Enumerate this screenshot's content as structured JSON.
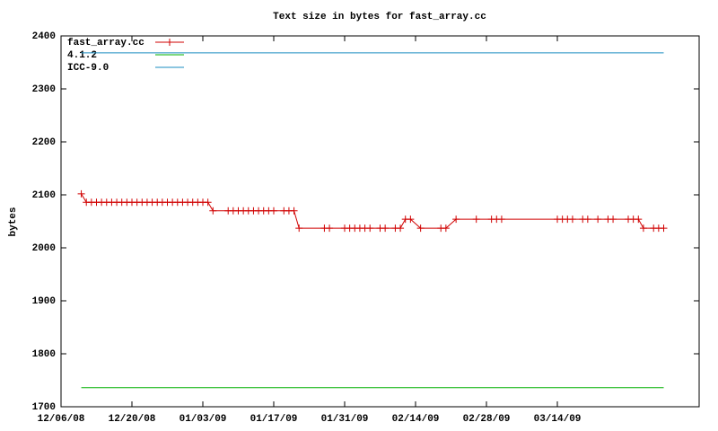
{
  "chart_data": {
    "type": "line",
    "title": "Text size in bytes for fast_array.cc",
    "y_label": "bytes",
    "xlim": [
      "2008-12-06",
      "2009-04-11"
    ],
    "xticks": [
      {
        "value": "2008-12-06",
        "label": "12/06/08"
      },
      {
        "value": "2008-12-20",
        "label": "12/20/08"
      },
      {
        "value": "2009-01-03",
        "label": "01/03/09"
      },
      {
        "value": "2009-01-17",
        "label": "01/17/09"
      },
      {
        "value": "2009-01-31",
        "label": "01/31/09"
      },
      {
        "value": "2009-02-14",
        "label": "02/14/09"
      },
      {
        "value": "2009-02-28",
        "label": "02/28/09"
      },
      {
        "value": "2009-03-14",
        "label": "03/14/09"
      }
    ],
    "ylim": [
      1700,
      2400
    ],
    "yticks": [
      1700,
      1800,
      1900,
      2000,
      2100,
      2200,
      2300,
      2400
    ],
    "legend": "top-left",
    "series": [
      {
        "name": "fast_array.cc",
        "color": "#d00000",
        "markers": true,
        "x": [
          "2008-12-10",
          "2008-12-11",
          "2008-12-12",
          "2008-12-13",
          "2008-12-14",
          "2008-12-15",
          "2008-12-16",
          "2008-12-17",
          "2008-12-18",
          "2008-12-19",
          "2008-12-20",
          "2008-12-21",
          "2008-12-22",
          "2008-12-23",
          "2008-12-24",
          "2008-12-25",
          "2008-12-26",
          "2008-12-27",
          "2008-12-28",
          "2008-12-29",
          "2008-12-30",
          "2008-12-31",
          "2009-01-01",
          "2009-01-02",
          "2009-01-03",
          "2009-01-04",
          "2009-01-05",
          "2009-01-08",
          "2009-01-09",
          "2009-01-10",
          "2009-01-11",
          "2009-01-12",
          "2009-01-13",
          "2009-01-14",
          "2009-01-15",
          "2009-01-16",
          "2009-01-17",
          "2009-01-19",
          "2009-01-20",
          "2009-01-21",
          "2009-01-22",
          "2009-01-27",
          "2009-01-28",
          "2009-01-31",
          "2009-02-01",
          "2009-02-02",
          "2009-02-03",
          "2009-02-04",
          "2009-02-05",
          "2009-02-07",
          "2009-02-08",
          "2009-02-10",
          "2009-02-11",
          "2009-02-12",
          "2009-02-13",
          "2009-02-15",
          "2009-02-19",
          "2009-02-20",
          "2009-02-22",
          "2009-02-26",
          "2009-03-01",
          "2009-03-02",
          "2009-03-03",
          "2009-03-14",
          "2009-03-15",
          "2009-03-16",
          "2009-03-17",
          "2009-03-19",
          "2009-03-20",
          "2009-03-22",
          "2009-03-24",
          "2009-03-25",
          "2009-03-28",
          "2009-03-29",
          "2009-03-30",
          "2009-03-31",
          "2009-04-02",
          "2009-04-03",
          "2009-04-04"
        ],
        "values": [
          2102,
          2086,
          2086,
          2086,
          2086,
          2086,
          2086,
          2086,
          2086,
          2086,
          2086,
          2086,
          2086,
          2086,
          2086,
          2086,
          2086,
          2086,
          2086,
          2086,
          2086,
          2086,
          2086,
          2086,
          2086,
          2086,
          2070,
          2070,
          2070,
          2070,
          2070,
          2070,
          2070,
          2070,
          2070,
          2070,
          2070,
          2070,
          2070,
          2070,
          2037,
          2037,
          2037,
          2037,
          2037,
          2037,
          2037,
          2037,
          2037,
          2037,
          2037,
          2037,
          2037,
          2054,
          2054,
          2037,
          2037,
          2037,
          2054,
          2054,
          2054,
          2054,
          2054,
          2054,
          2054,
          2054,
          2054,
          2054,
          2054,
          2054,
          2054,
          2054,
          2054,
          2054,
          2054,
          2037,
          2037,
          2037,
          2037
        ]
      },
      {
        "name": "4.1.2",
        "color": "#00b000",
        "markers": false,
        "x": [
          "2008-12-10",
          "2009-04-04"
        ],
        "values": [
          1736,
          1736
        ]
      },
      {
        "name": "ICC-9.0",
        "color": "#1a8cc0",
        "markers": false,
        "x": [
          "2008-12-10",
          "2009-04-04"
        ],
        "values": [
          2368,
          2368
        ]
      }
    ]
  }
}
